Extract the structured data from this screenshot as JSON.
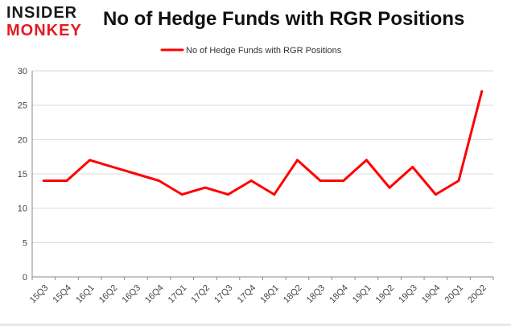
{
  "logo": {
    "line1": "INSIDER",
    "line2": "MONKEY"
  },
  "colors": {
    "series": "#ff0000",
    "grid": "#d9d9d9",
    "axis": "#888888",
    "brand": "#e31b23"
  },
  "chart_data": {
    "type": "line",
    "title": "No of Hedge Funds with RGR Positions",
    "xlabel": "",
    "ylabel": "",
    "ylim": [
      0,
      30
    ],
    "yticks": [
      0,
      5,
      10,
      15,
      20,
      25,
      30
    ],
    "grid": true,
    "legend_position": "top-center",
    "categories": [
      "15Q3",
      "15Q4",
      "16Q1",
      "16Q2",
      "16Q3",
      "16Q4",
      "17Q1",
      "17Q2",
      "17Q3",
      "17Q4",
      "18Q1",
      "18Q2",
      "18Q3",
      "18Q4",
      "19Q1",
      "19Q2",
      "19Q3",
      "19Q4",
      "20Q1",
      "20Q2"
    ],
    "series": [
      {
        "name": "No of Hedge Funds with RGR Positions",
        "values": [
          14,
          14,
          17,
          16,
          15,
          14,
          12,
          13,
          12,
          14,
          12,
          17,
          14,
          14,
          17,
          13,
          16,
          12,
          14,
          27
        ]
      }
    ]
  }
}
